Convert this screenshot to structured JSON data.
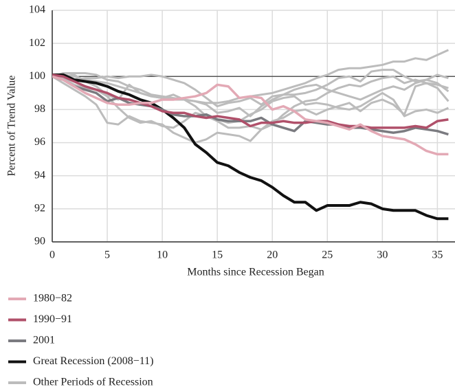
{
  "chart_data": {
    "type": "line",
    "x_label": "Months since Recession Began",
    "y_label": "Percent of Trend Value",
    "x": [
      0,
      1,
      2,
      3,
      4,
      5,
      6,
      7,
      8,
      9,
      10,
      11,
      12,
      13,
      14,
      15,
      16,
      17,
      18,
      19,
      20,
      21,
      22,
      23,
      24,
      25,
      26,
      27,
      28,
      29,
      30,
      31,
      32,
      33,
      34,
      35,
      36
    ],
    "xlim": [
      0,
      36.6
    ],
    "xticks": [
      0,
      5,
      10,
      15,
      20,
      25,
      30,
      35
    ],
    "ylim": [
      90,
      104
    ],
    "yticks": [
      90,
      92,
      94,
      96,
      98,
      100,
      102,
      104
    ],
    "grid": true,
    "reference_line": 100,
    "series": [
      {
        "name": "1980−82",
        "color": "#e3a9b5",
        "values": [
          100,
          99.8,
          99.4,
          99.0,
          98.7,
          98.4,
          98.3,
          98.3,
          98.4,
          98.4,
          98.6,
          98.6,
          98.7,
          98.8,
          99.0,
          99.5,
          99.4,
          98.7,
          98.8,
          98.7,
          98.0,
          98.2,
          97.9,
          97.4,
          97.3,
          97.2,
          97.0,
          96.8,
          97.1,
          96.7,
          96.4,
          96.3,
          96.2,
          95.9,
          95.5,
          95.3,
          95.3
        ]
      },
      {
        "name": "1990−91",
        "color": "#b0506a",
        "values": [
          100.1,
          100.0,
          99.7,
          99.4,
          99.2,
          99.0,
          98.7,
          98.6,
          98.4,
          98.2,
          97.9,
          97.8,
          97.8,
          97.6,
          97.5,
          97.6,
          97.5,
          97.4,
          97.0,
          97.2,
          97.2,
          97.3,
          97.2,
          97.2,
          97.3,
          97.3,
          97.1,
          97.0,
          97.0,
          96.9,
          96.9,
          96.9,
          96.9,
          97.0,
          96.9,
          97.3,
          97.4
        ]
      },
      {
        "name": "2001",
        "color": "#7b7b80",
        "values": [
          100,
          99.8,
          99.4,
          99.2,
          99.0,
          98.5,
          98.7,
          98.4,
          98.3,
          98.2,
          98.0,
          97.7,
          97.6,
          97.6,
          97.7,
          97.4,
          97.3,
          97.3,
          97.3,
          97.5,
          97.1,
          96.9,
          96.7,
          97.3,
          97.2,
          97.1,
          97.1,
          96.9,
          96.9,
          96.8,
          96.7,
          96.6,
          96.7,
          96.9,
          96.8,
          96.7,
          96.5
        ]
      },
      {
        "name": "Great Recession (2008−11)",
        "color": "#111111",
        "values": [
          100.1,
          100.1,
          99.8,
          99.7,
          99.6,
          99.4,
          99.1,
          98.9,
          98.6,
          98.4,
          98.0,
          97.5,
          96.9,
          95.9,
          95.4,
          94.8,
          94.6,
          94.2,
          93.9,
          93.7,
          93.3,
          92.8,
          92.4,
          92.4,
          91.9,
          92.2,
          92.2,
          92.2,
          92.4,
          92.3,
          92.0,
          91.9,
          91.9,
          91.9,
          91.6,
          91.4,
          91.4
        ]
      },
      {
        "name": "Other Periods of Recession",
        "color": "#bcbcbc",
        "lines": [
          [
            100,
            100.1,
            100.0,
            99.8,
            99.7,
            99.6,
            99.4,
            99.2,
            99.0,
            98.8,
            98.7,
            98.6,
            98.6,
            98.5,
            98.4,
            98.4,
            98.5,
            98.7,
            98.8,
            98.9,
            99.0,
            99.2,
            99.4,
            99.6,
            99.9,
            100.1,
            100.4,
            100.5,
            100.5,
            100.6,
            100.7,
            100.9,
            100.9,
            101.1,
            101.0,
            101.3,
            101.6
          ],
          [
            100,
            99.6,
            99.2,
            98.8,
            98.3,
            97.2,
            97.1,
            97.6,
            97.3,
            97.2,
            97.1,
            96.6,
            96.3,
            96.0,
            96.2,
            96.6,
            96.5,
            96.4,
            96.1,
            96.8,
            97.1,
            97.7,
            98.2,
            98.5,
            98.6,
            99.0,
            99.3,
            99.5,
            99.4,
            99.7,
            99.9,
            100.0,
            99.6,
            99.8,
            99.6,
            99.5,
            99.3
          ],
          [
            100,
            100.2,
            100.2,
            100.2,
            100.1,
            99.8,
            99.7,
            99.4,
            99.2,
            98.9,
            98.8,
            98.7,
            98.6,
            98.5,
            98.3,
            97.8,
            97.9,
            98.1,
            97.6,
            98.2,
            98.6,
            98.9,
            98.9,
            99.0,
            99.2,
            99.5,
            99.9,
            100.0,
            99.7,
            100.3,
            100.4,
            100.4,
            100.0,
            99.7,
            99.8,
            100.1,
            99.9
          ],
          [
            100,
            100.0,
            100.1,
            99.7,
            99.4,
            98.9,
            98.6,
            99.5,
            99.0,
            98.8,
            98.7,
            98.9,
            98.6,
            98.2,
            97.6,
            97.4,
            97.2,
            97.3,
            97.7,
            98.0,
            98.5,
            98.7,
            98.8,
            98.3,
            98.4,
            98.3,
            98.1,
            98.0,
            98.2,
            98.6,
            99.0,
            98.6,
            97.6,
            97.9,
            98.0,
            97.8,
            98.1
          ],
          [
            100,
            99.9,
            99.5,
            99.3,
            99.2,
            98.8,
            98.1,
            97.5,
            97.2,
            97.3,
            97.0,
            96.9,
            97.3,
            97.8,
            97.6,
            97.3,
            96.9,
            96.9,
            97.0,
            96.8,
            97.3,
            97.5,
            97.9,
            98.0,
            97.7,
            98.0,
            98.2,
            98.4,
            97.9,
            98.4,
            98.6,
            98.3,
            97.7,
            99.4,
            99.6,
            99.3,
            98.5
          ],
          [
            100,
            99.9,
            99.8,
            99.9,
            99.9,
            100.0,
            99.9,
            100.0,
            100.0,
            100.1,
            100.0,
            99.8,
            99.6,
            99.2,
            98.7,
            98.2,
            98.4,
            98.5,
            98.7,
            98.3,
            98.8,
            98.9,
            99.2,
            99.4,
            99.5,
            99.2,
            99.0,
            98.8,
            98.6,
            98.9,
            99.2,
            99.4,
            99.2,
            99.6,
            99.8,
            99.6,
            99.1
          ]
        ]
      }
    ]
  }
}
